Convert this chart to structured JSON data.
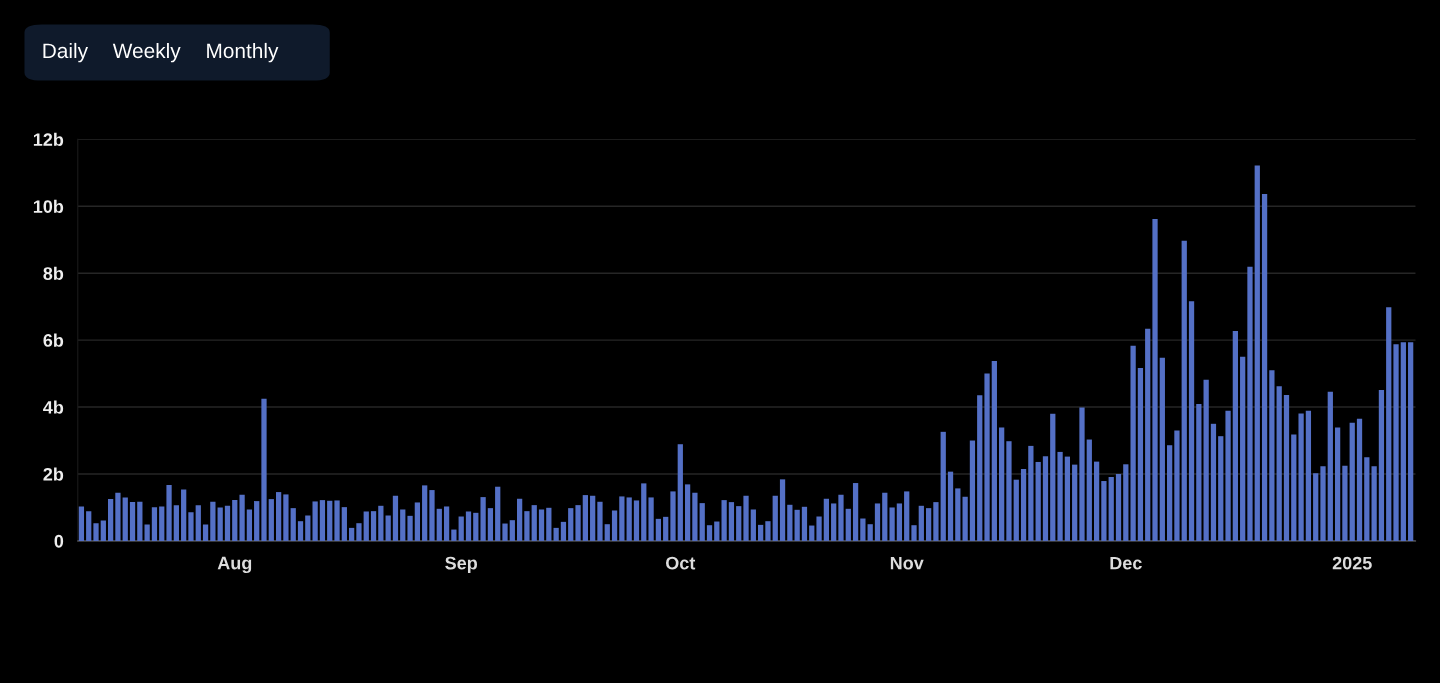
{
  "chart_data": {
    "type": "bar",
    "x": [
      "2024-07-11",
      "2024-07-12",
      "2024-07-13",
      "2024-07-14",
      "2024-07-15",
      "2024-07-16",
      "2024-07-17",
      "2024-07-18",
      "2024-07-19",
      "2024-07-20",
      "2024-07-21",
      "2024-07-22",
      "2024-07-23",
      "2024-07-24",
      "2024-07-25",
      "2024-07-26",
      "2024-07-27",
      "2024-07-28",
      "2024-07-29",
      "2024-07-30",
      "2024-07-31",
      "2024-08-01",
      "2024-08-02",
      "2024-08-03",
      "2024-08-04",
      "2024-08-05",
      "2024-08-06",
      "2024-08-07",
      "2024-08-08",
      "2024-08-09",
      "2024-08-10",
      "2024-08-11",
      "2024-08-12",
      "2024-08-13",
      "2024-08-14",
      "2024-08-15",
      "2024-08-16",
      "2024-08-17",
      "2024-08-18",
      "2024-08-19",
      "2024-08-20",
      "2024-08-21",
      "2024-08-22",
      "2024-08-23",
      "2024-08-24",
      "2024-08-25",
      "2024-08-26",
      "2024-08-27",
      "2024-08-28",
      "2024-08-29",
      "2024-08-30",
      "2024-08-31",
      "2024-09-01",
      "2024-09-02",
      "2024-09-03",
      "2024-09-04",
      "2024-09-05",
      "2024-09-06",
      "2024-09-07",
      "2024-09-08",
      "2024-09-09",
      "2024-09-10",
      "2024-09-11",
      "2024-09-12",
      "2024-09-13",
      "2024-09-14",
      "2024-09-15",
      "2024-09-16",
      "2024-09-17",
      "2024-09-18",
      "2024-09-19",
      "2024-09-20",
      "2024-09-21",
      "2024-09-22",
      "2024-09-23",
      "2024-09-24",
      "2024-09-25",
      "2024-09-26",
      "2024-09-27",
      "2024-09-28",
      "2024-09-29",
      "2024-09-30",
      "2024-10-01",
      "2024-10-02",
      "2024-10-03",
      "2024-10-04",
      "2024-10-05",
      "2024-10-06",
      "2024-10-07",
      "2024-10-08",
      "2024-10-09",
      "2024-10-10",
      "2024-10-11",
      "2024-10-12",
      "2024-10-13",
      "2024-10-14",
      "2024-10-15",
      "2024-10-16",
      "2024-10-17",
      "2024-10-18",
      "2024-10-19",
      "2024-10-20",
      "2024-10-21",
      "2024-10-22",
      "2024-10-23",
      "2024-10-24",
      "2024-10-25",
      "2024-10-26",
      "2024-10-27",
      "2024-10-28",
      "2024-10-29",
      "2024-10-30",
      "2024-10-31",
      "2024-11-01",
      "2024-11-02",
      "2024-11-03",
      "2024-11-04",
      "2024-11-05",
      "2024-11-06",
      "2024-11-07",
      "2024-11-08",
      "2024-11-09",
      "2024-11-10",
      "2024-11-11",
      "2024-11-12",
      "2024-11-13",
      "2024-11-14",
      "2024-11-15",
      "2024-11-16",
      "2024-11-17",
      "2024-11-18",
      "2024-11-19",
      "2024-11-20",
      "2024-11-21",
      "2024-11-22",
      "2024-11-23",
      "2024-11-24",
      "2024-11-25",
      "2024-11-26",
      "2024-11-27",
      "2024-11-28",
      "2024-11-29",
      "2024-11-30",
      "2024-12-01",
      "2024-12-02",
      "2024-12-03",
      "2024-12-04",
      "2024-12-05",
      "2024-12-06",
      "2024-12-07",
      "2024-12-08",
      "2024-12-09",
      "2024-12-10",
      "2024-12-11",
      "2024-12-12",
      "2024-12-13",
      "2024-12-14",
      "2024-12-15",
      "2024-12-16",
      "2024-12-17",
      "2024-12-18",
      "2024-12-19",
      "2024-12-20",
      "2024-12-21",
      "2024-12-22",
      "2024-12-23",
      "2024-12-24",
      "2024-12-25",
      "2024-12-26",
      "2024-12-27",
      "2024-12-28",
      "2024-12-29",
      "2024-12-30",
      "2024-12-31",
      "2025-01-01",
      "2025-01-02",
      "2025-01-03",
      "2025-01-04",
      "2025-01-05",
      "2025-01-06",
      "2025-01-07",
      "2025-01-08",
      "2025-01-09"
    ],
    "values": [
      1.03,
      0.89,
      0.53,
      0.61,
      1.25,
      1.44,
      1.3,
      1.16,
      1.17,
      0.49,
      1.01,
      1.03,
      1.67,
      1.07,
      1.54,
      0.86,
      1.07,
      0.49,
      1.17,
      1.0,
      1.05,
      1.22,
      1.38,
      0.94,
      1.19,
      4.25,
      1.25,
      1.46,
      1.39,
      0.98,
      0.59,
      0.76,
      1.18,
      1.22,
      1.2,
      1.21,
      1.01,
      0.39,
      0.53,
      0.88,
      0.89,
      1.05,
      0.76,
      1.35,
      0.94,
      0.75,
      1.15,
      1.66,
      1.52,
      0.96,
      1.03,
      0.34,
      0.73,
      0.88,
      0.84,
      1.31,
      0.98,
      1.62,
      0.52,
      0.62,
      1.26,
      0.89,
      1.07,
      0.94,
      0.99,
      0.39,
      0.57,
      0.98,
      1.07,
      1.37,
      1.35,
      1.17,
      0.5,
      0.91,
      1.33,
      1.3,
      1.21,
      1.72,
      1.3,
      0.66,
      0.72,
      1.48,
      2.89,
      1.69,
      1.44,
      1.13,
      0.47,
      0.58,
      1.22,
      1.16,
      1.04,
      1.35,
      0.94,
      0.48,
      0.59,
      1.35,
      1.84,
      1.08,
      0.93,
      1.02,
      0.46,
      0.73,
      1.26,
      1.12,
      1.38,
      0.96,
      1.73,
      0.67,
      0.5,
      1.12,
      1.44,
      1.0,
      1.12,
      1.48,
      0.47,
      1.05,
      0.98,
      1.16,
      3.26,
      2.07,
      1.57,
      1.32,
      3.0,
      4.35,
      5.0,
      5.38,
      3.39,
      2.98,
      1.83,
      2.15,
      2.84,
      2.36,
      2.53,
      3.8,
      2.66,
      2.52,
      2.28,
      3.99,
      3.03,
      2.37,
      1.79,
      1.91,
      2.0,
      2.29,
      5.83,
      5.17,
      6.34,
      9.62,
      5.47,
      2.86,
      3.3,
      8.97,
      7.16,
      4.09,
      4.82,
      3.5,
      3.13,
      3.89,
      6.27,
      5.5,
      8.19,
      11.22,
      10.37,
      5.1,
      4.62,
      4.36,
      3.18,
      3.81,
      3.89,
      2.02,
      2.23,
      4.46,
      3.39,
      2.25,
      3.53,
      3.65,
      2.5,
      2.23,
      4.51,
      6.98,
      5.88,
      5.94,
      5.94
    ],
    "color": "#5470c6",
    "xlim": [
      "2024-07-10T12:00",
      "2025-01-09T16:00"
    ],
    "xticks": [
      {
        "value": "2024-08-01",
        "label": "Aug"
      },
      {
        "value": "2024-09-01",
        "label": "Sep"
      },
      {
        "value": "2024-10-01",
        "label": "Oct"
      },
      {
        "value": "2024-11-01",
        "label": "Nov"
      },
      {
        "value": "2024-12-01",
        "label": "Dec"
      },
      {
        "value": "2025-01-01",
        "label": "2025"
      }
    ],
    "ylim": [
      0,
      12
    ],
    "yticks": [
      0,
      {
        "value": 2,
        "label": "2b"
      },
      {
        "value": 4,
        "label": "4b"
      },
      {
        "value": 6,
        "label": "6b"
      },
      {
        "value": 8,
        "label": "8b"
      },
      {
        "value": 10,
        "label": "10b"
      },
      {
        "value": 12,
        "label": "12b"
      }
    ],
    "grid": "y",
    "annotations": [
      "Daily",
      "Weekly",
      "Monthly"
    ]
  }
}
